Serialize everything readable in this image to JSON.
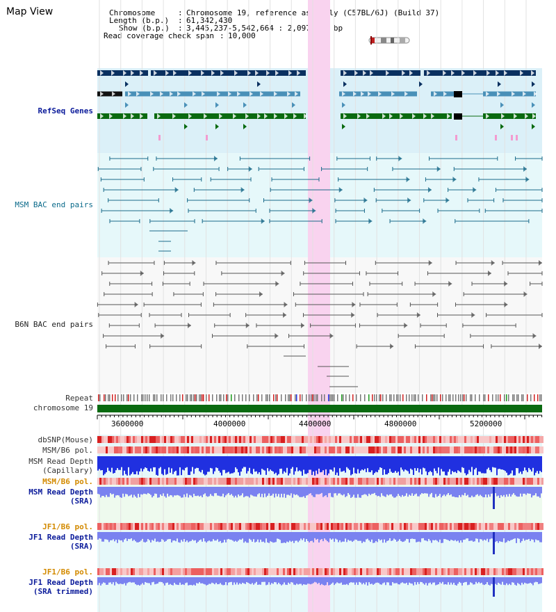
{
  "title": "Map View",
  "info": {
    "chromosome_key": "Chromosome",
    "chromosome_val": "Chromosome 19, reference assembly (C57BL/6J) (Build 37)",
    "length_key": "Length (b.p.)",
    "length_val": "61,342,430",
    "show_key": "Show (b.p.)",
    "show_val": "3,445,237-5,542,664 : 2,097,428 bp",
    "read_key": "Read coverage check span",
    "read_val": "10,000"
  },
  "tracks": {
    "refseq": "RefSeq Genes",
    "msm_bac": "MSM BAC end pairs",
    "b6n_bac": "B6N BAC end pairs",
    "repeat": "Repeat",
    "chromosome": "chromosome 19",
    "dbsnp": "dbSNP(Mouse)",
    "msm_b6_pol_1": "MSM/B6 pol.",
    "msm_read_depth_1": "MSM Read Depth",
    "capillary": "(Capillary)",
    "msm_b6_pol_2": "MSM/B6 pol.",
    "msm_read_depth_2": "MSM Read Depth",
    "sra_1": "(SRA)",
    "jf1_b6_pol_1": "JF1/B6 pol.",
    "jf1_read_depth_1": "JF1 Read Depth",
    "sra_2": "(SRA)",
    "jf1_b6_pol_2": "JF1/B6 pol.",
    "jf1_read_depth_2": "JF1 Read Depth",
    "sra_trimmed": "(SRA trimmed)"
  },
  "ruler": {
    "ticks": [
      "3600000",
      "4000000",
      "4400000",
      "4800000",
      "5200000"
    ]
  },
  "colors": {
    "highlight": "#f9d3ef",
    "refseq_bg": "#dbf0f8",
    "msm_bg": "#e6f8fa",
    "gene_navy": "#0a3060",
    "gene_blue": "#4a90b8",
    "gene_green": "#0a6a10",
    "msm_line": "#1a6a8a",
    "b6n_line": "#555555",
    "snp_pink": "#f5a8a8",
    "snp_red": "#e04040",
    "depth_blue": "#2030e0",
    "depth_light": "#7a82f0"
  }
}
